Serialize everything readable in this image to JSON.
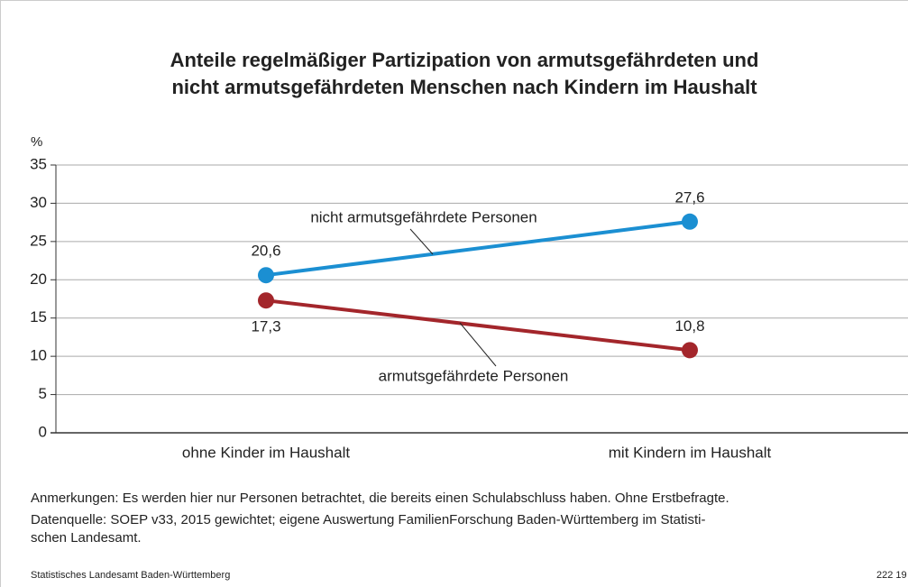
{
  "chart_data": {
    "type": "line",
    "title": [
      "Anteile regelmäßiger Partizipation von armutsgefährdeten und",
      "nicht armutsgefährdeten Menschen nach Kindern im Haushalt"
    ],
    "y_label": "%",
    "categories": [
      "ohne Kinder im Haushalt",
      "mit Kindern im Haushalt"
    ],
    "series": [
      {
        "name": "nicht armutsgefährdete Personen",
        "color": "#1b8fd2",
        "values": [
          20.6,
          27.6
        ],
        "value_labels": [
          "20,6",
          "27,6"
        ]
      },
      {
        "name": "armutsgefährdete Personen",
        "color": "#a3262b",
        "values": [
          17.3,
          10.8
        ],
        "value_labels": [
          "17,3",
          "10,8"
        ]
      }
    ],
    "ylim": [
      0,
      35
    ],
    "yticks": [
      0,
      5,
      10,
      15,
      20,
      25,
      30,
      35
    ],
    "grid": true,
    "notes": [
      "Anmerkungen: Es werden hier nur Personen betrachtet, die bereits einen Schulabschluss haben. Ohne Erstbefragte.",
      "Datenquelle: SOEP v33, 2015 gewichtet; eigene Auswertung FamilienForschung Baden-Württemberg im Statisti-",
      "schen Landesamt."
    ],
    "source": "Statistisches Landesamt Baden-Württemberg",
    "code": "222 19"
  }
}
